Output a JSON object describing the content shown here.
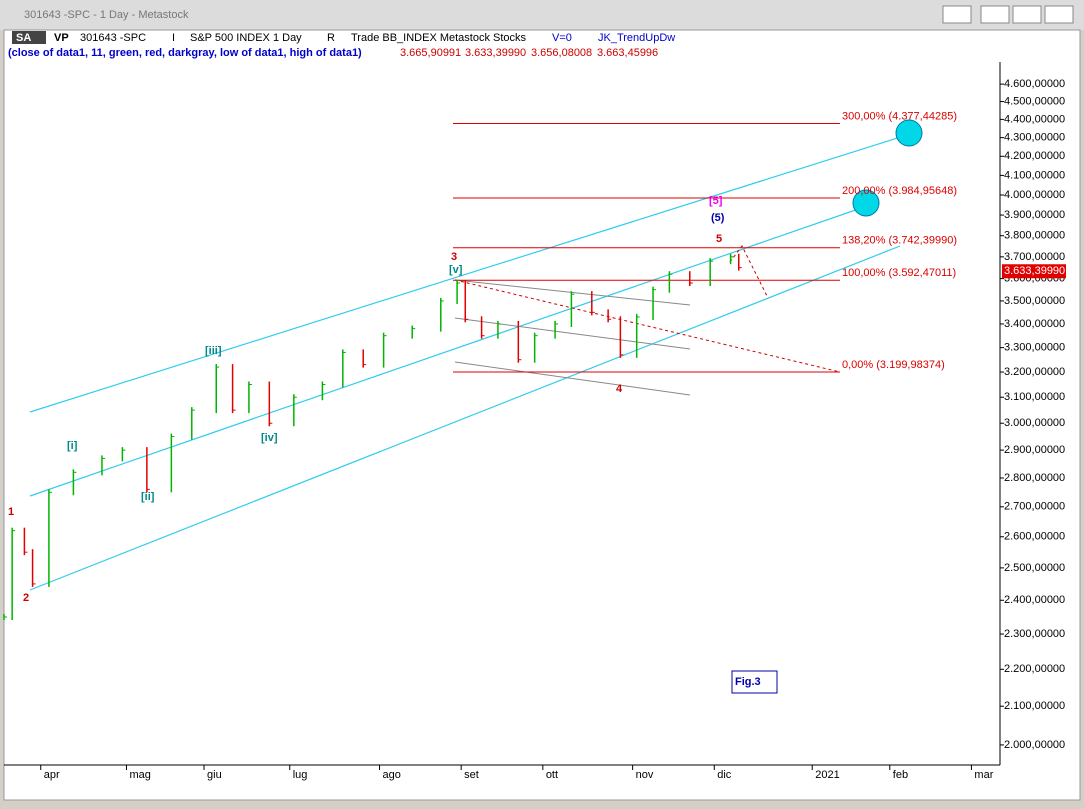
{
  "window_title": "301643 -SPC - 1 Day - Metastock",
  "toolbar": [
    "SA",
    "VP",
    "301643 -SPC",
    "I",
    "S&P 500 INDEX 1 Day",
    "R",
    "Trade  BB_INDEX  Metastock  Stocks",
    "V=0",
    "JK_TrendUpDw"
  ],
  "indicator": {
    "label": "(close of data1,  11,  green,  red,  darkgray,  low of data1,  high of data1)",
    "values": [
      "3.665,90991",
      "3.633,39990",
      "3.656,08008",
      "3.663,45996"
    ]
  },
  "chart_data": {
    "type": "bar",
    "log_scale": true,
    "x": [
      0,
      2,
      5,
      7,
      11,
      17,
      24,
      29,
      35,
      41,
      46,
      52,
      56,
      60,
      65,
      71,
      78,
      83,
      88,
      93,
      100,
      107,
      111,
      113,
      117,
      121,
      126,
      130,
      135,
      139,
      144,
      148,
      151,
      155,
      159,
      163,
      168,
      173,
      178,
      180
    ],
    "values": [
      2350,
      2620,
      2550,
      2450,
      2750,
      2820,
      2870,
      2900,
      2760,
      2950,
      3050,
      3220,
      3050,
      3150,
      3000,
      3100,
      3150,
      3280,
      3230,
      3350,
      3380,
      3500,
      3580,
      3420,
      3350,
      3400,
      3250,
      3350,
      3400,
      3530,
      3450,
      3420,
      3270,
      3430,
      3550,
      3620,
      3580,
      3680,
      3700,
      3650
    ],
    "up_color": "#00b400",
    "down_color": "#e00000",
    "xlim": [
      0,
      244
    ],
    "xticks": [
      {
        "value": 9,
        "label": "apr"
      },
      {
        "value": 30,
        "label": "mag"
      },
      {
        "value": 49,
        "label": "giu"
      },
      {
        "value": 70,
        "label": "lug"
      },
      {
        "value": 92,
        "label": "ago"
      },
      {
        "value": 112,
        "label": "set"
      },
      {
        "value": 132,
        "label": "ott"
      },
      {
        "value": 154,
        "label": "nov"
      },
      {
        "value": 174,
        "label": "dic"
      },
      {
        "value": 198,
        "label": "2021"
      },
      {
        "value": 217,
        "label": "feb"
      },
      {
        "value": 237,
        "label": "mar"
      }
    ],
    "ylim": [
      1950,
      4730
    ],
    "yticks": [
      {
        "value": 2000,
        "label": "2.000,00000"
      },
      {
        "value": 2100,
        "label": "2.100,00000"
      },
      {
        "value": 2200,
        "label": "2.200,00000"
      },
      {
        "value": 2300,
        "label": "2.300,00000"
      },
      {
        "value": 2400,
        "label": "2.400,00000"
      },
      {
        "value": 2500,
        "label": "2.500,00000"
      },
      {
        "value": 2600,
        "label": "2.600,00000"
      },
      {
        "value": 2700,
        "label": "2.700,00000"
      },
      {
        "value": 2800,
        "label": "2.800,00000"
      },
      {
        "value": 2900,
        "label": "2.900,00000"
      },
      {
        "value": 3000,
        "label": "3.000,00000"
      },
      {
        "value": 3100,
        "label": "3.100,00000"
      },
      {
        "value": 3200,
        "label": "3.200,00000"
      },
      {
        "value": 3300,
        "label": "3.300,00000"
      },
      {
        "value": 3400,
        "label": "3.400,00000"
      },
      {
        "value": 3500,
        "label": "3.500,00000"
      },
      {
        "value": 3600,
        "label": "3.600,00000"
      },
      {
        "value": 3700,
        "label": "3.700,00000"
      },
      {
        "value": 3800,
        "label": "3.800,00000"
      },
      {
        "value": 3900,
        "label": "3.900,00000"
      },
      {
        "value": 4000,
        "label": "4.000,00000"
      },
      {
        "value": 4100,
        "label": "4.100,00000"
      },
      {
        "value": 4200,
        "label": "4.200,00000"
      },
      {
        "value": 4300,
        "label": "4.300,00000"
      },
      {
        "value": 4400,
        "label": "4.400,00000"
      },
      {
        "value": 4500,
        "label": "4.500,00000"
      },
      {
        "value": 4600,
        "label": "4.600,00000"
      }
    ],
    "levels": [
      {
        "value": 4377.44285,
        "label": "300,00% (4.377,44285)"
      },
      {
        "value": 3984.95648,
        "label": "200,00% (3.984,95648)"
      },
      {
        "value": 3742.3999,
        "label": "138,20% (3.742,39990)"
      },
      {
        "value": 3592.47011,
        "label": "100,00% (3.592,47011)"
      },
      {
        "value": 3199.98374,
        "label": "0,00% (3.199,98374)"
      }
    ],
    "last_price": {
      "value": 3633.3999,
      "label": "3.633,39990"
    },
    "annotations": [
      "1",
      "2",
      "3",
      "4",
      "5",
      "[i]",
      "[ii]",
      "[iii]",
      "[iv]",
      "[v]",
      "[5]",
      "(5)",
      "Fig.3"
    ]
  }
}
